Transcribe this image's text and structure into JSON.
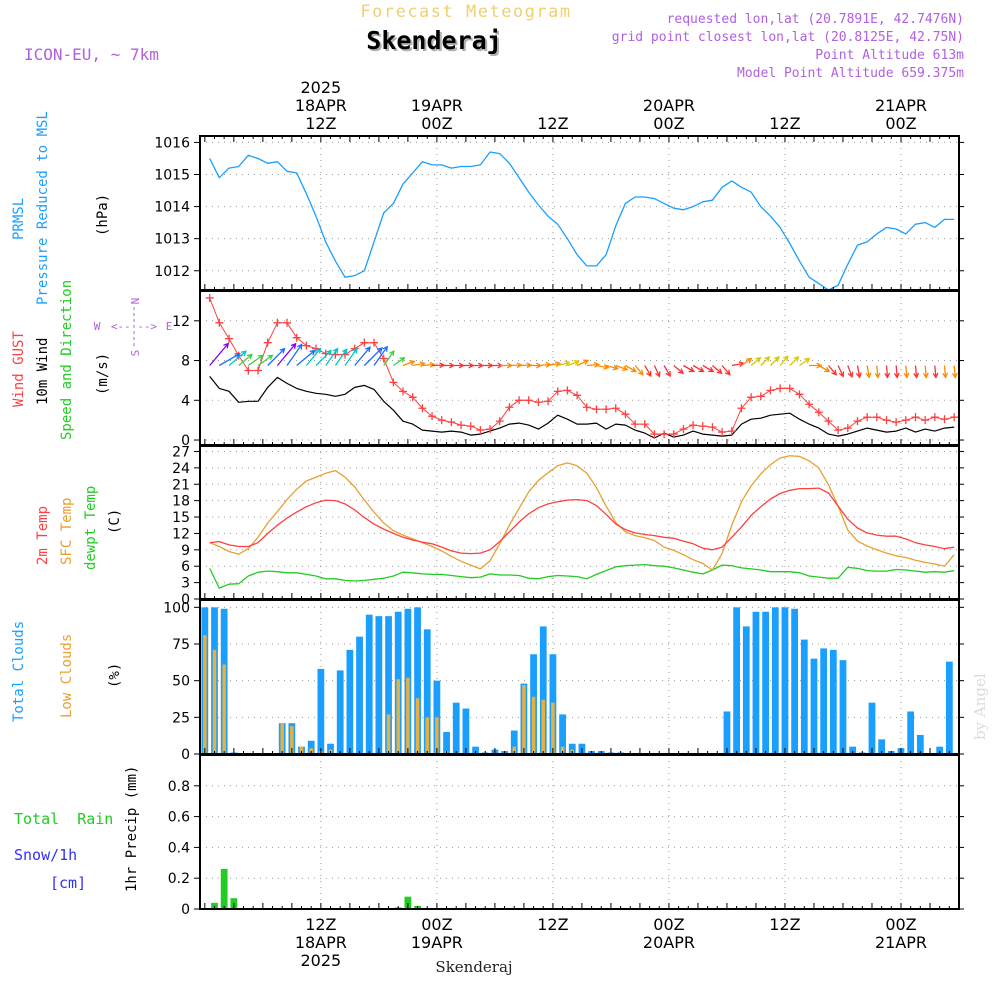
{
  "header": {
    "title": "Forecast Meteogram",
    "location": "Skenderaj",
    "model": "ICON-EU, ~ 7km",
    "requested": "requested lon,lat (20.7891E, 42.7476N)",
    "grid_point": "grid point closest lon,lat (20.8125E, 42.75N)",
    "point_altitude": "Point Altitude 613m",
    "model_altitude": "Model Point Altitude 659.375m",
    "footer_location": "Skenderaj",
    "watermark": "by Angel"
  },
  "colors": {
    "pressure": "#1a9fff",
    "gust": "#ff4040",
    "wind": "#000000",
    "t2m": "#ff4040",
    "sfc": "#e8a030",
    "dewpt": "#22cc22",
    "total_clouds": "#1a9fff",
    "low_clouds": "#e8b040",
    "rain": "#22cc22",
    "snow": "#3030ff",
    "meta": "#b060e0",
    "title": "#f0d070"
  },
  "time_axis": {
    "top_labels": [
      {
        "t": 12,
        "lines": [
          "2025",
          "18APR",
          "12Z"
        ]
      },
      {
        "t": 24,
        "lines": [
          "19APR",
          "00Z"
        ]
      },
      {
        "t": 36,
        "lines": [
          "12Z"
        ]
      },
      {
        "t": 48,
        "lines": [
          "20APR",
          "00Z"
        ]
      },
      {
        "t": 60,
        "lines": [
          "12Z"
        ]
      },
      {
        "t": 72,
        "lines": [
          "21APR",
          "00Z"
        ]
      }
    ],
    "bottom_labels": [
      {
        "t": 12,
        "lines": [
          "12Z",
          "18APR",
          "2025"
        ]
      },
      {
        "t": 24,
        "lines": [
          "00Z",
          "19APR"
        ]
      },
      {
        "t": 36,
        "lines": [
          "12Z"
        ]
      },
      {
        "t": 48,
        "lines": [
          "00Z",
          "20APR"
        ]
      },
      {
        "t": 60,
        "lines": [
          "12Z"
        ]
      },
      {
        "t": 72,
        "lines": [
          "00Z",
          "21APR"
        ]
      }
    ]
  },
  "panels": {
    "pressure": {
      "label1": "PRMSL",
      "label2": "Pressure Reduced to MSL",
      "unit": "(hPa)",
      "ticks": [
        "1012",
        "1013",
        "1014",
        "1015",
        "1016"
      ]
    },
    "wind": {
      "label_gust": "Wind GUST",
      "label_wind": "10m Wind",
      "label_dir": "Speed and Direction",
      "unit": "(m/s)",
      "ticks": [
        "0",
        "4",
        "8",
        "12"
      ],
      "compass": {
        "n": "N",
        "s": "S",
        "w": "W",
        "e": "E"
      }
    },
    "temp": {
      "label_t2m": "2m Temp",
      "label_sfc": "SFC Temp",
      "label_dew": "dewpt Temp",
      "unit": "(C)",
      "ticks": [
        "0",
        "3",
        "6",
        "9",
        "12",
        "15",
        "18",
        "21",
        "24",
        "27"
      ]
    },
    "clouds": {
      "label_total": "Total Clouds",
      "label_low": "Low Clouds",
      "unit": "(%)",
      "ticks": [
        "0",
        "25",
        "50",
        "75",
        "100"
      ]
    },
    "precip": {
      "label_rain": "Total  Rain",
      "label_snow": "Snow/1h",
      "label_cm": "[cm]",
      "unit": "1hr Precip (mm)",
      "ticks": [
        "0",
        "0.2",
        "0.4",
        "0.6",
        "0.8"
      ]
    }
  },
  "chart_data": {
    "type": "line",
    "title": "Forecast Meteogram - Skenderaj",
    "x_unit": "hours since 18APR 00Z",
    "x_range": [
      0.5,
      78
    ],
    "pressure": {
      "ylabel": "PRMSL (hPa)",
      "ylim": [
        1011.4,
        1016.2
      ],
      "x": [
        0.5,
        1.5,
        2.5,
        3.5,
        4.5,
        5.5,
        6.5,
        7.5,
        8.5,
        9.5,
        10.5,
        11.5,
        12.5,
        13.5,
        14.5,
        15.5,
        16.5,
        17.5,
        18.5,
        19.5,
        20.5,
        21.5,
        22.5,
        23.5,
        24.5,
        25.5,
        26.5,
        27.5,
        28.5,
        29.5,
        30.5,
        31.5,
        32.5,
        33.5,
        34.5,
        35.5,
        36.5,
        37.5,
        38.5,
        39.5,
        40.5,
        41.5,
        42.5,
        43.5,
        44.5,
        45.5,
        46.5,
        47.5,
        48.5,
        49.5,
        50.5,
        51.5,
        52.5,
        53.5,
        54.5,
        55.5,
        56.5,
        57.5,
        58.5,
        59.5,
        60.5,
        61.5,
        62.5,
        63.5,
        64.5,
        65.5,
        66.5,
        67.5,
        68.5,
        69.5,
        70.5,
        71.5,
        72.5,
        73.5,
        74.5,
        75.5,
        76.5,
        77.5
      ],
      "y": [
        1015.5,
        1014.9,
        1015.2,
        1015.25,
        1015.6,
        1015.5,
        1015.35,
        1015.4,
        1015.1,
        1015.05,
        1014.4,
        1013.7,
        1012.9,
        1012.3,
        1011.8,
        1011.85,
        1012.0,
        1012.9,
        1013.8,
        1014.1,
        1014.7,
        1015.05,
        1015.4,
        1015.3,
        1015.3,
        1015.2,
        1015.25,
        1015.25,
        1015.3,
        1015.7,
        1015.65,
        1015.35,
        1014.9,
        1014.45,
        1014.05,
        1013.7,
        1013.45,
        1013.0,
        1012.5,
        1012.15,
        1012.15,
        1012.5,
        1013.4,
        1014.1,
        1014.3,
        1014.3,
        1014.25,
        1014.1,
        1013.95,
        1013.9,
        1014.0,
        1014.15,
        1014.2,
        1014.6,
        1014.8,
        1014.6,
        1014.45,
        1014.0,
        1013.7,
        1013.35,
        1012.85,
        1012.3,
        1011.8,
        1011.6,
        1011.4,
        1011.55,
        1012.2,
        1012.8,
        1012.9,
        1013.15,
        1013.35,
        1013.3,
        1013.15,
        1013.45,
        1013.5,
        1013.35,
        1013.6,
        1013.6
      ]
    },
    "wind": {
      "ylabel": "Wind (m/s)",
      "ylim": [
        -0.5,
        15
      ],
      "x": [
        0.5,
        1.5,
        2.5,
        3.5,
        4.5,
        5.5,
        6.5,
        7.5,
        8.5,
        9.5,
        10.5,
        11.5,
        12.5,
        13.5,
        14.5,
        15.5,
        16.5,
        17.5,
        18.5,
        19.5,
        20.5,
        21.5,
        22.5,
        23.5,
        24.5,
        25.5,
        26.5,
        27.5,
        28.5,
        29.5,
        30.5,
        31.5,
        32.5,
        33.5,
        34.5,
        35.5,
        36.5,
        37.5,
        38.5,
        39.5,
        40.5,
        41.5,
        42.5,
        43.5,
        44.5,
        45.5,
        46.5,
        47.5,
        48.5,
        49.5,
        50.5,
        51.5,
        52.5,
        53.5,
        54.5,
        55.5,
        56.5,
        57.5,
        58.5,
        59.5,
        60.5,
        61.5,
        62.5,
        63.5,
        64.5,
        65.5,
        66.5,
        67.5,
        68.5,
        69.5,
        70.5,
        71.5,
        72.5,
        73.5,
        74.5,
        75.5,
        76.5,
        77.5
      ],
      "gust": [
        14.3,
        11.8,
        10.2,
        8.5,
        7.0,
        7.0,
        9.8,
        11.8,
        11.8,
        10.3,
        9.5,
        9.2,
        8.7,
        8.6,
        8.6,
        9.2,
        9.8,
        9.8,
        8.2,
        5.8,
        4.9,
        4.3,
        3.2,
        2.4,
        2.0,
        1.8,
        1.5,
        1.4,
        1.0,
        1.1,
        1.9,
        3.3,
        4.0,
        4.0,
        3.8,
        3.9,
        4.9,
        5.0,
        4.5,
        3.3,
        3.1,
        3.1,
        3.2,
        2.6,
        1.6,
        1.6,
        0.6,
        0.6,
        0.6,
        1.1,
        1.5,
        1.4,
        1.3,
        0.8,
        0.9,
        3.2,
        4.3,
        4.4,
        5.0,
        5.2,
        5.2,
        4.6,
        3.6,
        2.8,
        1.9,
        1.0,
        1.2,
        1.9,
        2.3,
        2.3,
        2.0,
        1.8,
        2.0,
        2.3,
        2.0,
        2.3,
        2.1,
        2.3
      ],
      "speed": [
        6.4,
        5.2,
        4.9,
        3.8,
        3.9,
        3.9,
        5.3,
        6.3,
        5.7,
        5.2,
        4.9,
        4.7,
        4.6,
        4.4,
        4.6,
        5.3,
        5.5,
        5.1,
        3.9,
        3.0,
        1.9,
        1.6,
        1.0,
        0.9,
        0.8,
        0.9,
        0.8,
        0.5,
        0.6,
        0.9,
        1.2,
        1.6,
        1.7,
        1.5,
        1.1,
        1.7,
        2.5,
        2.1,
        1.6,
        1.6,
        1.7,
        1.1,
        1.6,
        1.5,
        1.0,
        0.7,
        0.2,
        0.7,
        0.3,
        0.5,
        0.9,
        0.6,
        0.5,
        0.4,
        0.5,
        1.6,
        2.1,
        2.2,
        2.5,
        2.6,
        2.7,
        2.1,
        1.6,
        1.2,
        0.6,
        0.4,
        0.6,
        0.9,
        1.2,
        1.0,
        0.8,
        0.9,
        1.2,
        0.8,
        1.1,
        0.9,
        1.2,
        1.3
      ],
      "direction_deg": [
        220,
        240,
        230,
        230,
        235,
        235,
        225,
        220,
        215,
        230,
        220,
        225,
        215,
        215,
        215,
        220,
        225,
        215,
        215,
        235,
        250,
        260,
        265,
        268,
        270,
        270,
        270,
        270,
        270,
        270,
        270,
        268,
        268,
        270,
        265,
        260,
        255,
        250,
        245,
        265,
        280,
        285,
        290,
        300,
        320,
        330,
        335,
        330,
        310,
        300,
        300,
        300,
        310,
        320,
        260,
        235,
        230,
        225,
        225,
        220,
        225,
        235,
        270,
        300,
        320,
        335,
        340,
        350,
        350,
        355,
        355,
        355,
        355,
        355,
        355,
        355,
        355,
        355
      ]
    },
    "temperature": {
      "ylabel": "Temperature (C)",
      "ylim": [
        0,
        28
      ],
      "x": [
        0.5,
        1.5,
        2.5,
        3.5,
        4.5,
        5.5,
        6.5,
        7.5,
        8.5,
        9.5,
        10.5,
        11.5,
        12.5,
        13.5,
        14.5,
        15.5,
        16.5,
        17.5,
        18.5,
        19.5,
        20.5,
        21.5,
        22.5,
        23.5,
        24.5,
        25.5,
        26.5,
        27.5,
        28.5,
        29.5,
        30.5,
        31.5,
        32.5,
        33.5,
        34.5,
        35.5,
        36.5,
        37.5,
        38.5,
        39.5,
        40.5,
        41.5,
        42.5,
        43.5,
        44.5,
        45.5,
        46.5,
        47.5,
        48.5,
        49.5,
        50.5,
        51.5,
        52.5,
        53.5,
        54.5,
        55.5,
        56.5,
        57.5,
        58.5,
        59.5,
        60.5,
        61.5,
        62.5,
        63.5,
        64.5,
        65.5,
        66.5,
        67.5,
        68.5,
        69.5,
        70.5,
        71.5,
        72.5,
        73.5,
        74.5,
        75.5,
        76.5,
        77.5
      ],
      "t2m": [
        10.3,
        10.5,
        9.9,
        9.6,
        9.6,
        10.3,
        12.0,
        13.5,
        14.8,
        15.9,
        16.9,
        17.6,
        18.1,
        18.0,
        17.4,
        16.3,
        14.9,
        13.7,
        12.8,
        12.0,
        11.3,
        10.8,
        10.4,
        10.1,
        9.5,
        8.8,
        8.4,
        8.3,
        8.4,
        9.0,
        10.5,
        12.3,
        14.1,
        15.6,
        16.7,
        17.4,
        17.8,
        18.1,
        18.2,
        18.0,
        17.1,
        15.5,
        13.7,
        12.7,
        12.1,
        11.8,
        11.6,
        11.3,
        11.1,
        10.6,
        10.1,
        9.3,
        9.0,
        9.5,
        11.3,
        13.2,
        15.3,
        16.9,
        18.3,
        19.3,
        19.9,
        20.2,
        20.2,
        20.3,
        19.4,
        17.0,
        14.6,
        13.0,
        12.1,
        11.7,
        11.5,
        11.5,
        11.0,
        10.3,
        9.9,
        9.6,
        9.2,
        9.5
      ],
      "sfc": [
        10.3,
        9.6,
        8.7,
        8.2,
        9.2,
        11.3,
        13.9,
        16.0,
        18.2,
        20.1,
        21.6,
        22.3,
        23.0,
        23.5,
        22.3,
        20.5,
        18.1,
        15.9,
        13.9,
        12.5,
        11.7,
        11.0,
        10.3,
        9.6,
        8.8,
        7.8,
        6.9,
        6.2,
        5.5,
        7.0,
        10.1,
        13.5,
        16.6,
        19.6,
        21.7,
        23.1,
        24.4,
        24.9,
        24.4,
        23.0,
        20.4,
        17.0,
        14.0,
        12.3,
        11.6,
        11.2,
        10.7,
        9.5,
        8.9,
        8.1,
        7.2,
        6.5,
        5.3,
        8.3,
        13.5,
        17.8,
        20.7,
        22.9,
        24.6,
        25.8,
        26.2,
        26.1,
        25.3,
        24.0,
        20.9,
        17.0,
        12.6,
        10.6,
        9.7,
        9.0,
        8.4,
        7.9,
        7.6,
        7.1,
        6.7,
        6.4,
        6.0,
        8.1
      ],
      "dewpt": [
        5.6,
        2.0,
        2.7,
        2.8,
        4.2,
        4.9,
        5.1,
        5.0,
        4.8,
        4.8,
        4.5,
        4.2,
        3.7,
        3.7,
        3.4,
        3.3,
        3.4,
        3.6,
        3.8,
        4.2,
        4.9,
        4.8,
        4.6,
        4.5,
        4.5,
        4.3,
        4.1,
        3.9,
        4.0,
        4.6,
        4.4,
        4.4,
        4.3,
        3.8,
        3.7,
        4.1,
        4.3,
        4.2,
        4.1,
        3.7,
        4.5,
        5.2,
        5.9,
        6.1,
        6.2,
        6.3,
        6.1,
        6.0,
        5.7,
        5.3,
        4.9,
        4.6,
        5.3,
        6.2,
        6.1,
        5.7,
        5.5,
        5.3,
        5.0,
        5.0,
        5.0,
        4.8,
        4.2,
        4.0,
        3.8,
        3.8,
        5.8,
        5.6,
        5.2,
        5.1,
        5.1,
        5.4,
        5.3,
        5.1,
        4.9,
        5.0,
        4.9,
        5.2
      ]
    },
    "clouds": {
      "ylabel": "Cloud cover (%)",
      "ylim": [
        0,
        105
      ],
      "x": [
        0,
        1,
        2,
        3,
        4,
        5,
        6,
        7,
        8,
        9,
        10,
        11,
        12,
        13,
        14,
        15,
        16,
        17,
        18,
        19,
        20,
        21,
        22,
        23,
        24,
        25,
        26,
        27,
        28,
        29,
        30,
        31,
        32,
        33,
        34,
        35,
        36,
        37,
        38,
        39,
        40,
        41,
        42,
        43,
        44,
        45,
        46,
        47,
        48,
        49,
        50,
        51,
        52,
        53,
        54,
        55,
        56,
        57,
        58,
        59,
        60,
        61,
        62,
        63,
        64,
        65,
        66,
        67,
        68,
        69,
        70,
        71,
        72,
        73,
        74,
        75,
        76,
        77
      ],
      "total": [
        100,
        100,
        99,
        1,
        0,
        0,
        0,
        0,
        21,
        21,
        5,
        9,
        58,
        7,
        57,
        71,
        80,
        95,
        94,
        94,
        97,
        99,
        100,
        85,
        50,
        15,
        35,
        31,
        5,
        1,
        3,
        2,
        16,
        48,
        68,
        87,
        68,
        27,
        7,
        7,
        2,
        2,
        1,
        1,
        0,
        0,
        0,
        0,
        0,
        0,
        0,
        0,
        0,
        0,
        29,
        100,
        87,
        97,
        97,
        100,
        100,
        99,
        78,
        65,
        72,
        71,
        64,
        5,
        1,
        35,
        10,
        2,
        4,
        29,
        13,
        0,
        5,
        63
      ],
      "low": [
        81,
        71,
        61,
        0,
        0,
        0,
        0,
        0,
        21,
        19,
        5,
        4,
        2,
        3,
        0,
        0,
        0,
        0,
        0,
        27,
        51,
        52,
        38,
        25,
        25,
        2,
        0,
        0,
        0,
        0,
        0,
        0,
        5,
        47,
        39,
        37,
        35,
        5,
        3,
        0,
        0,
        0,
        0,
        0,
        0,
        0,
        0,
        0,
        0,
        0,
        0,
        0,
        0,
        0,
        0,
        0,
        0,
        0,
        0,
        0,
        0,
        0,
        0,
        0,
        0,
        0,
        0,
        0,
        0,
        0,
        0,
        0,
        0,
        0,
        0,
        0,
        0,
        0
      ]
    },
    "precip": {
      "ylabel": "1hr Precip (mm)",
      "ylim": [
        0,
        1.0
      ],
      "rain": [
        {
          "x": 1,
          "y": 0.04
        },
        {
          "x": 2,
          "y": 0.26
        },
        {
          "x": 3,
          "y": 0.07
        },
        {
          "x": 20,
          "y": 0.01
        },
        {
          "x": 21,
          "y": 0.08
        },
        {
          "x": 22,
          "y": 0.02
        }
      ],
      "snow": []
    }
  }
}
